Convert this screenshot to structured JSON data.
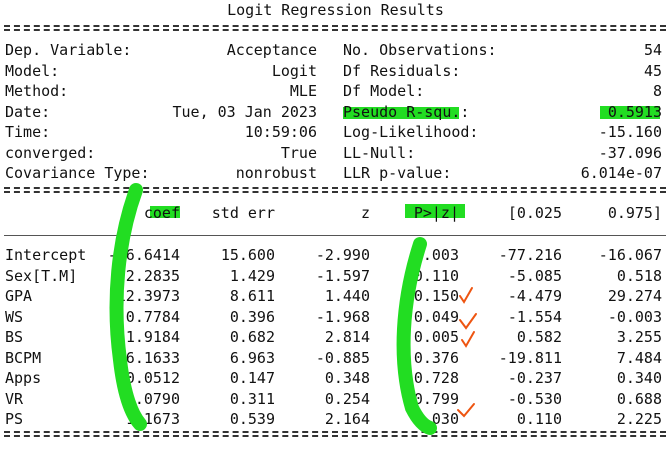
{
  "title": "Logit Regression Results",
  "info": {
    "left": [
      {
        "label": "Dep. Variable:",
        "value": "Acceptance"
      },
      {
        "label": "Model:",
        "value": "Logit"
      },
      {
        "label": "Method:",
        "value": "MLE"
      },
      {
        "label": "Date:",
        "value": "Tue, 03 Jan 2023"
      },
      {
        "label": "Time:",
        "value": "10:59:06"
      },
      {
        "label": "converged:",
        "value": "True"
      },
      {
        "label": "Covariance Type:",
        "value": "nonrobust"
      }
    ],
    "right": [
      {
        "label": "No. Observations:",
        "value": "54"
      },
      {
        "label": "Df Residuals:",
        "value": "45"
      },
      {
        "label": "Df Model:",
        "value": "8"
      },
      {
        "label": "Pseudo R-squ.:",
        "value": "0.5913"
      },
      {
        "label": "Log-Likelihood:",
        "value": "-15.160"
      },
      {
        "label": "LL-Null:",
        "value": "-37.096"
      },
      {
        "label": "LLR p-value:",
        "value": "6.014e-07"
      }
    ]
  },
  "coef_table": {
    "headers": [
      "coef",
      "std err",
      "z",
      "P>|z|",
      "[0.025",
      "0.975]"
    ],
    "rows": [
      {
        "name": "Intercept",
        "coef": "-46.6414",
        "std_err": "15.600",
        "z": "-2.990",
        "p": "0.003",
        "lo": "-77.216",
        "hi": "-16.067"
      },
      {
        "name": "Sex[T.M]",
        "coef": "-2.2835",
        "std_err": "1.429",
        "z": "-1.597",
        "p": "0.110",
        "lo": "-5.085",
        "hi": "0.518"
      },
      {
        "name": "GPA",
        "coef": "12.3973",
        "std_err": "8.611",
        "z": "1.440",
        "p": "0.150",
        "lo": "-4.479",
        "hi": "29.274"
      },
      {
        "name": "WS",
        "coef": "-0.7784",
        "std_err": "0.396",
        "z": "-1.968",
        "p": "0.049",
        "lo": "-1.554",
        "hi": "-0.003"
      },
      {
        "name": "BS",
        "coef": "1.9184",
        "std_err": "0.682",
        "z": "2.814",
        "p": "0.005",
        "lo": "0.582",
        "hi": "3.255"
      },
      {
        "name": "BCPM",
        "coef": "-6.1633",
        "std_err": "6.963",
        "z": "-0.885",
        "p": "0.376",
        "lo": "-19.811",
        "hi": "7.484"
      },
      {
        "name": "Apps",
        "coef": "0.0512",
        "std_err": "0.147",
        "z": "0.348",
        "p": "0.728",
        "lo": "-0.237",
        "hi": "0.340"
      },
      {
        "name": "VR",
        "coef": "0.0790",
        "std_err": "0.311",
        "z": "0.254",
        "p": "0.799",
        "lo": "-0.530",
        "hi": "0.688"
      },
      {
        "name": "PS",
        "coef": "1.1673",
        "std_err": "0.539",
        "z": "2.164",
        "p": "0.030",
        "lo": "0.110",
        "hi": "2.225"
      }
    ]
  },
  "annotation_colors": {
    "highlight": "#22dd22",
    "checkmark": "#ee5511"
  }
}
